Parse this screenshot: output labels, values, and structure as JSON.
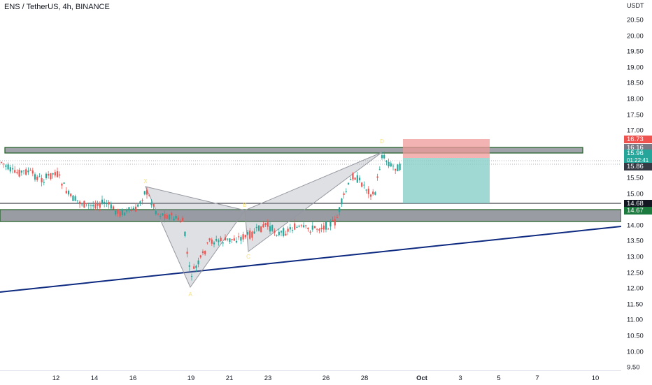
{
  "header": {
    "symbol_title": "ENS / TetherUS, 4h, BINANCE"
  },
  "price_axis": {
    "currency": "USDT",
    "ticks": [
      "20.50",
      "20.00",
      "19.50",
      "19.00",
      "18.50",
      "18.00",
      "17.50",
      "17.00",
      "16.50",
      "16.00",
      "15.50",
      "15.00",
      "14.50",
      "14.00",
      "13.50",
      "13.00",
      "12.50",
      "12.00",
      "11.50",
      "11.00",
      "10.50",
      "10.00",
      "9.50"
    ]
  },
  "time_axis": {
    "ticks": [
      "12",
      "14",
      "16",
      "19",
      "21",
      "23",
      "26",
      "28",
      "Oct",
      "3",
      "5",
      "7",
      "10"
    ]
  },
  "badges": {
    "stop_price": "16.73",
    "entry_high": "16.16",
    "last_price": "15.96",
    "countdown": "01:22:41",
    "target_line": "15.86",
    "line_1468": "14.68",
    "support_price": "14.67"
  },
  "pattern_labels": {
    "X": "X",
    "A": "A",
    "B": "B",
    "C": "C",
    "D": "D"
  },
  "colors": {
    "bull": "#26a69a",
    "bear": "#ef5350",
    "zone_fill": "#787b86",
    "zone_border": "#1b5e20",
    "trend": "#0d2a80",
    "pattern": "#9598a1",
    "stop_zone": "#ef9a9a",
    "profit_zone": "#80cbc4",
    "text_yellow": "#f7e07a"
  }
}
